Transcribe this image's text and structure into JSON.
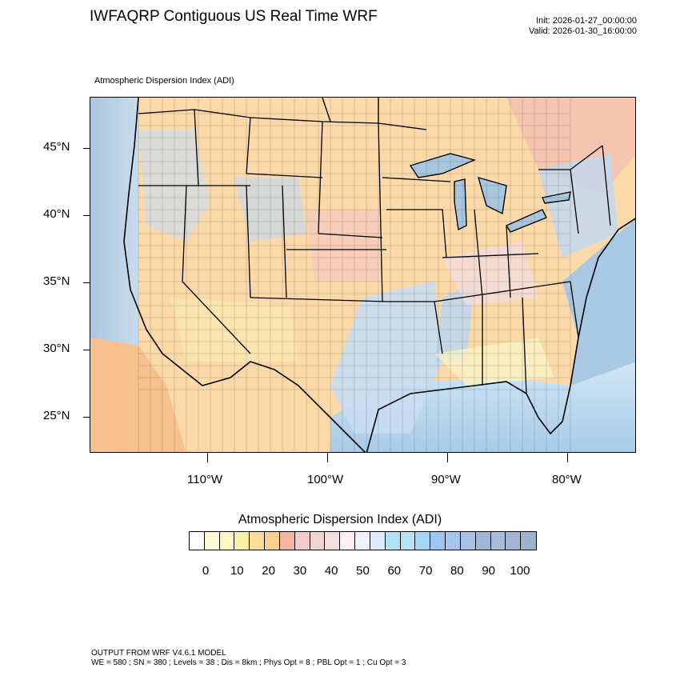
{
  "header": {
    "title": "IWFAQRP Contiguous US Real Time WRF",
    "init": "Init: 2026-01-27_00:00:00",
    "valid": "Valid: 2026-01-30_16:00:00"
  },
  "map": {
    "subtitle": "Atmospheric Dispersion Index   (ADI)",
    "lat_labels": [
      "45°N",
      "40°N",
      "35°N",
      "30°N",
      "25°N"
    ],
    "lon_labels": [
      "110°W",
      "100°W",
      "90°W",
      "80°W"
    ]
  },
  "legend": {
    "title": "Atmospheric Dispersion Index  (ADI)",
    "colors": [
      "#ffffff",
      "#fdfbd6",
      "#fcf9c0",
      "#fbf0a6",
      "#fbdf96",
      "#fbcf8c",
      "#f8b4a2",
      "#f3cccc",
      "#f3d4d4",
      "#f6dede",
      "#fcf0f0",
      "#eef3fc",
      "#dceaf9",
      "#b2e2f6",
      "#b7e3f7",
      "#a6d6f5",
      "#9dc6f4",
      "#a8c4f0",
      "#a8c0e8",
      "#9fb6d6",
      "#a8bed8",
      "#a2b6d0",
      "#9ab2cc"
    ],
    "labels": [
      "0",
      "10",
      "20",
      "30",
      "40",
      "50",
      "60",
      "70",
      "80",
      "90",
      "100"
    ]
  },
  "footer": {
    "line1": "OUTPUT FROM WRF V4.6.1 MODEL",
    "line2": "WE = 580 ; SN = 380 ; Levels = 38 ; Dis = 8km ; Phys Opt = 8 ; PBL Opt = 1 ; Cu Opt = 3"
  }
}
